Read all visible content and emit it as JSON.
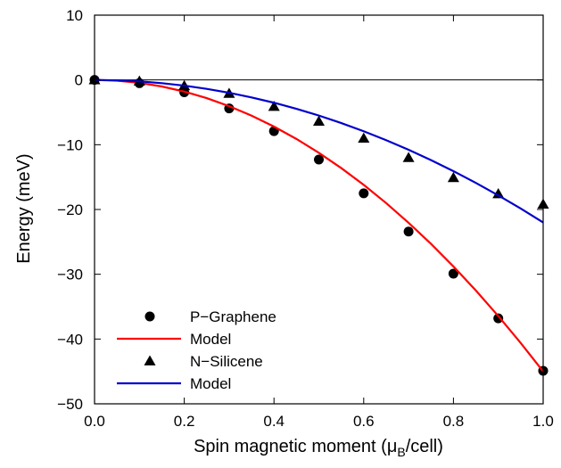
{
  "chart_data": {
    "type": "scatter",
    "xlabel_main": "Spin magnetic moment (μ",
    "xlabel_sub": "B",
    "xlabel_tail": "/cell)",
    "ylabel": "Energy (meV)",
    "xlim": [
      0.0,
      1.0
    ],
    "ylim": [
      -50,
      10
    ],
    "xticks": [
      "0.0",
      "0.2",
      "0.4",
      "0.6",
      "0.8",
      "1.0"
    ],
    "yticks": [
      "10",
      "0",
      "−10",
      "−20",
      "−30",
      "−40",
      "−50"
    ],
    "legend_position": "bottom-left",
    "series": [
      {
        "name": "P−Graphene",
        "kind": "points",
        "marker": "circle",
        "color": "#000000",
        "x": [
          0.0,
          0.1,
          0.2,
          0.3,
          0.4,
          0.5,
          0.6,
          0.7,
          0.8,
          0.9,
          1.0
        ],
        "y": [
          0.0,
          -0.5,
          -1.9,
          -4.4,
          -7.9,
          -12.3,
          -17.5,
          -23.4,
          -29.9,
          -36.8,
          -44.9
        ]
      },
      {
        "name": "Model",
        "kind": "line",
        "color": "#ff0000",
        "x": [
          0.0,
          0.05,
          0.1,
          0.15,
          0.2,
          0.25,
          0.3,
          0.35,
          0.4,
          0.45,
          0.5,
          0.55,
          0.6,
          0.65,
          0.7,
          0.75,
          0.8,
          0.85,
          0.9,
          0.95,
          1.0
        ],
        "y": [
          0.0,
          -0.11,
          -0.45,
          -1.01,
          -1.8,
          -2.81,
          -4.05,
          -5.51,
          -7.2,
          -9.11,
          -11.25,
          -13.61,
          -16.2,
          -19.01,
          -22.05,
          -25.31,
          -28.8,
          -32.51,
          -36.45,
          -40.61,
          -45.0
        ]
      },
      {
        "name": "N−Silicene",
        "kind": "points",
        "marker": "triangle",
        "color": "#000000",
        "x": [
          0.0,
          0.1,
          0.2,
          0.3,
          0.4,
          0.5,
          0.6,
          0.7,
          0.8,
          0.9,
          1.0
        ],
        "y": [
          0.0,
          -0.2,
          -0.9,
          -2.1,
          -4.1,
          -6.4,
          -9.0,
          -12.0,
          -15.1,
          -17.6,
          -19.2
        ]
      },
      {
        "name": "Model",
        "kind": "line",
        "color": "#0000cc",
        "x": [
          0.0,
          0.05,
          0.1,
          0.15,
          0.2,
          0.25,
          0.3,
          0.35,
          0.4,
          0.45,
          0.5,
          0.55,
          0.6,
          0.65,
          0.7,
          0.75,
          0.8,
          0.85,
          0.9,
          0.95,
          1.0
        ],
        "y": [
          0.0,
          -0.06,
          -0.22,
          -0.5,
          -0.88,
          -1.38,
          -1.98,
          -2.7,
          -3.52,
          -4.46,
          -5.5,
          -6.66,
          -7.92,
          -9.3,
          -10.78,
          -12.38,
          -14.08,
          -15.9,
          -17.82,
          -19.86,
          -22.0
        ]
      }
    ]
  }
}
